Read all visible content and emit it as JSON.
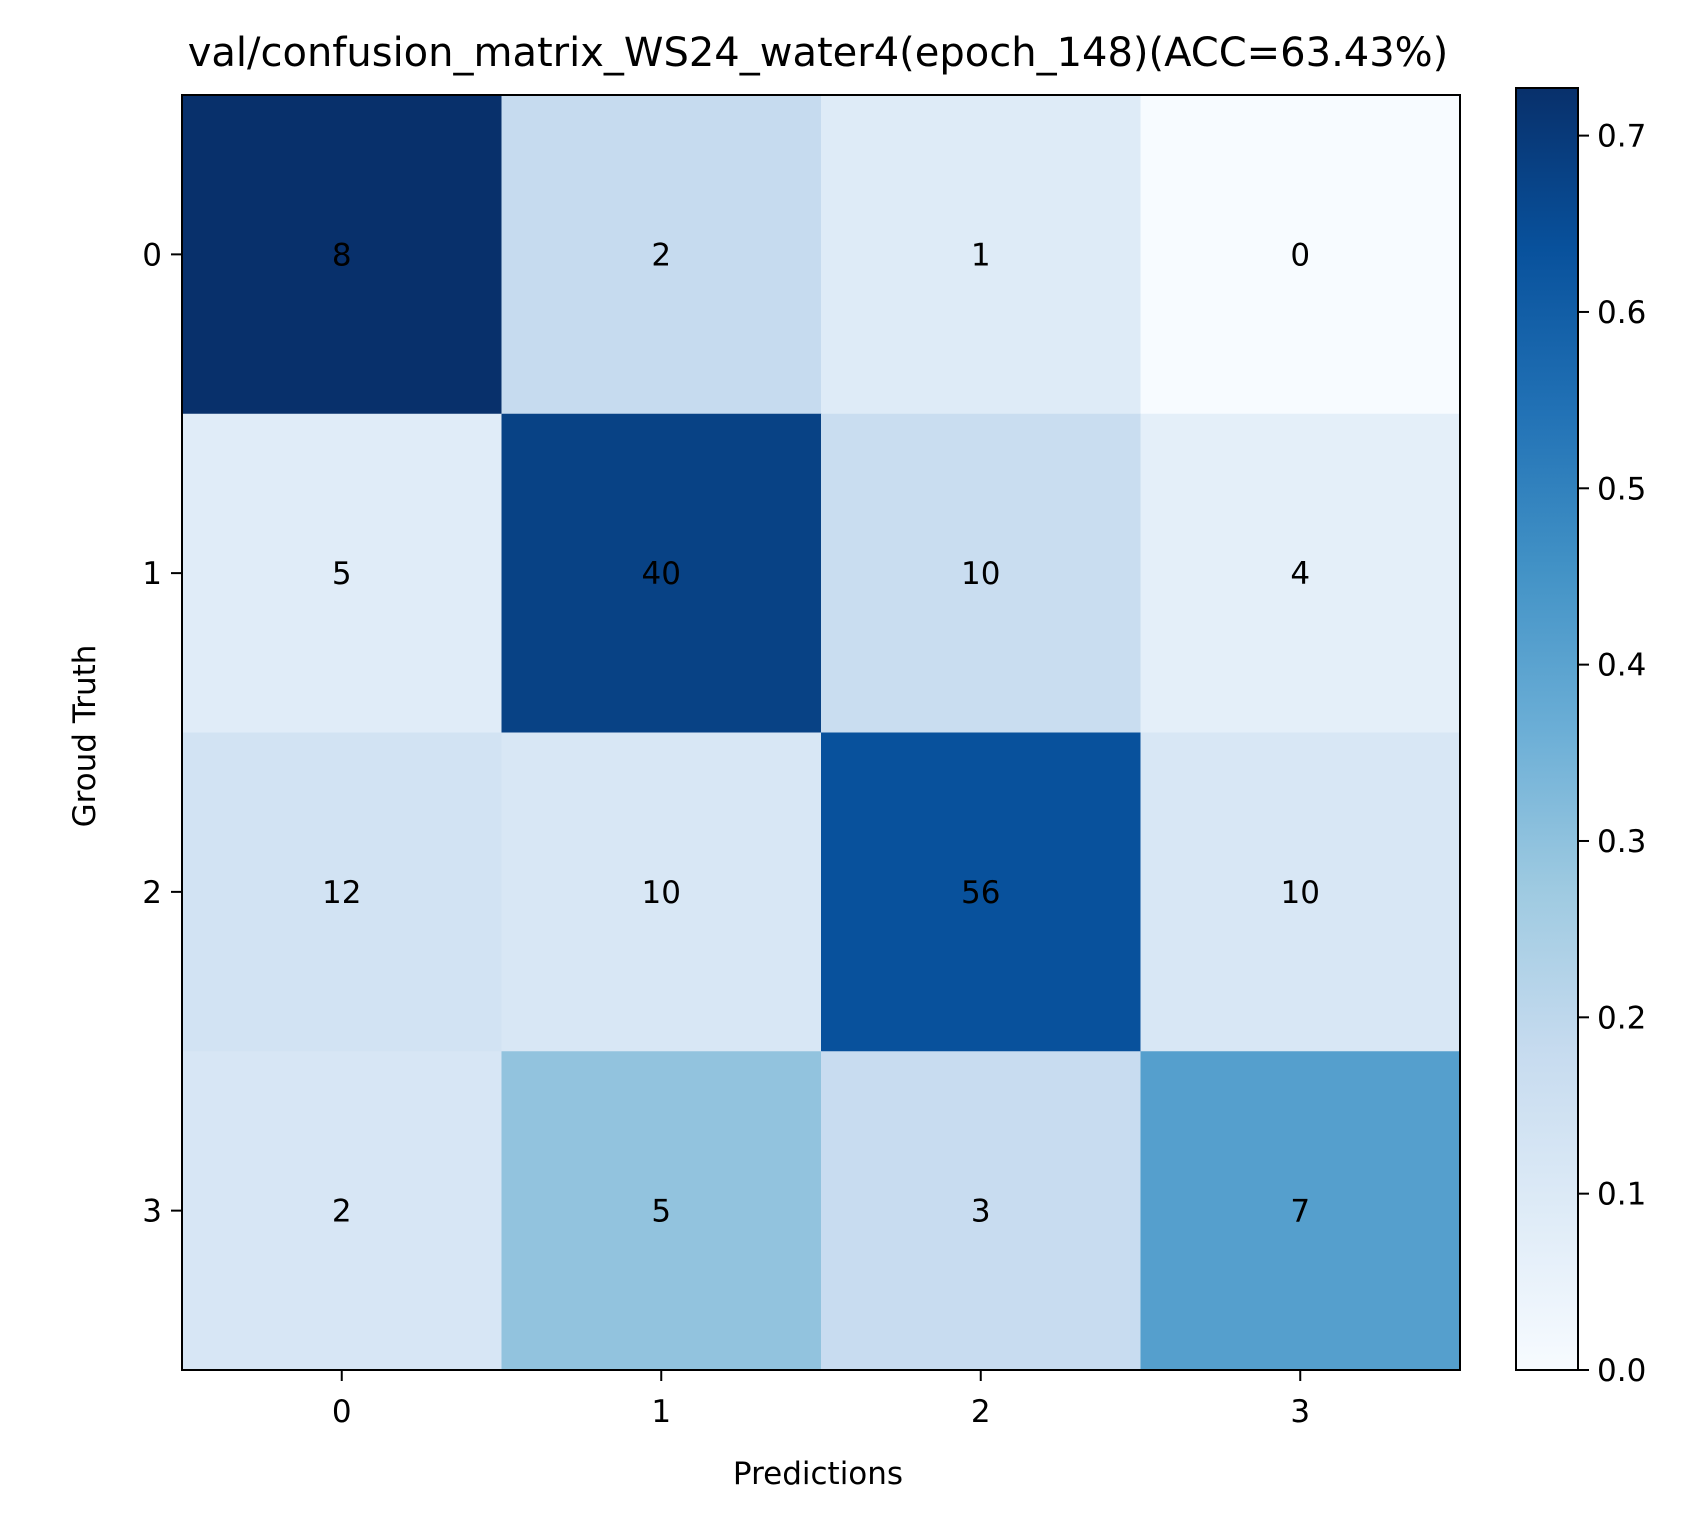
{
  "chart_data": {
    "type": "heatmap",
    "title": "val/confusion_matrix_WS24_water4(epoch_148)(ACC=63.43%)",
    "xlabel": "Predictions",
    "ylabel": "Groud Truth",
    "x_categories": [
      "0",
      "1",
      "2",
      "3"
    ],
    "y_categories": [
      "0",
      "1",
      "2",
      "3"
    ],
    "values": [
      [
        8,
        2,
        1,
        0
      ],
      [
        5,
        40,
        10,
        4
      ],
      [
        12,
        10,
        56,
        10
      ],
      [
        2,
        5,
        3,
        7
      ]
    ],
    "normalized": [
      [
        0.727,
        0.182,
        0.091,
        0.0
      ],
      [
        0.085,
        0.678,
        0.169,
        0.068
      ],
      [
        0.136,
        0.114,
        0.636,
        0.114
      ],
      [
        0.118,
        0.294,
        0.176,
        0.412
      ]
    ],
    "colormap": "Blues",
    "colorbar": {
      "range": [
        0.0,
        0.727
      ],
      "ticks": [
        "0.0",
        "0.1",
        "0.2",
        "0.3",
        "0.4",
        "0.5",
        "0.6",
        "0.7"
      ]
    },
    "grid": false
  }
}
